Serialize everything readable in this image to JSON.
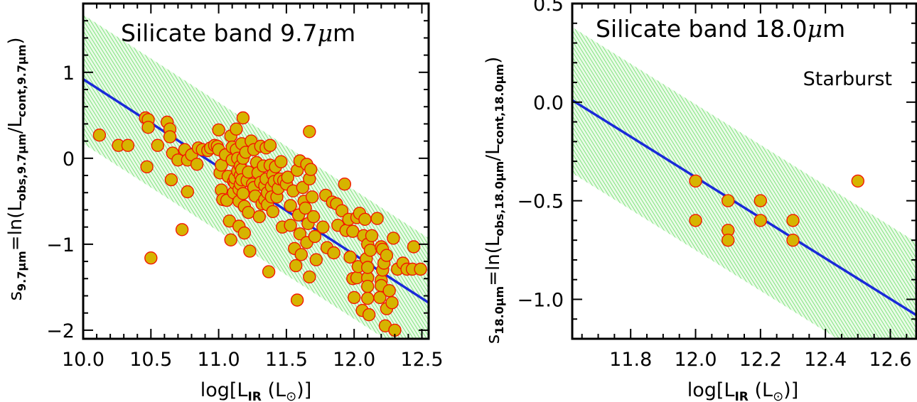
{
  "chart_data": [
    {
      "type": "scatter",
      "title": "Silicate band 9.7μm",
      "title_parts": {
        "prefix": "Silicate band 9.7",
        "mu": "μ",
        "unit": "m"
      },
      "annotation": "",
      "xlabel": "log[L_IR (L_⊙)]",
      "xlabel_parts": {
        "pre": "log[L",
        "sub": "IR",
        "mid": " (L",
        "sun": "⊙",
        "post": ")]"
      },
      "ylabel": "s_9.7μm=ln(L_obs,9.7μm/L_cont,9.7μm)",
      "ylabel_parts": {
        "s": "s",
        "s_sub": "9.7μm",
        "eq": "=ln(L",
        "num_sub": "obs,9.7μm",
        "slash": "/L",
        "den_sub": "cont,9.7μm",
        "close": ")"
      },
      "xlim": [
        10.0,
        12.55
      ],
      "ylim": [
        -2.1,
        1.8
      ],
      "xticks": [
        10.0,
        10.5,
        11.0,
        11.5,
        12.0,
        12.5
      ],
      "xtick_labels": [
        "10.0",
        "10.5",
        "11.0",
        "11.5",
        "12.0",
        "12.5"
      ],
      "yticks": [
        -2,
        -1,
        0,
        1
      ],
      "ytick_labels": [
        "−2",
        "−1",
        "0",
        "1"
      ],
      "fit_line": {
        "x": [
          10.0,
          12.55
        ],
        "y": [
          0.92,
          -1.68
        ]
      },
      "band": {
        "x": [
          10.0,
          12.55
        ],
        "upper": [
          1.67,
          -0.93
        ],
        "lower": [
          0.17,
          -2.43
        ]
      },
      "points": [
        [
          10.12,
          0.27
        ],
        [
          10.26,
          0.15
        ],
        [
          10.33,
          0.15
        ],
        [
          10.46,
          0.47
        ],
        [
          10.48,
          0.45
        ],
        [
          10.48,
          0.36
        ],
        [
          10.47,
          -0.1
        ],
        [
          10.5,
          -1.16
        ],
        [
          10.55,
          0.15
        ],
        [
          10.62,
          0.42
        ],
        [
          10.64,
          0.34
        ],
        [
          10.64,
          0.25
        ],
        [
          10.66,
          0.06
        ],
        [
          10.65,
          -0.25
        ],
        [
          10.7,
          -0.02
        ],
        [
          10.73,
          -0.83
        ],
        [
          10.75,
          0.1
        ],
        [
          10.77,
          -0.02
        ],
        [
          10.77,
          -0.39
        ],
        [
          10.8,
          0.04
        ],
        [
          10.84,
          -0.07
        ],
        [
          10.85,
          0.12
        ],
        [
          10.88,
          0.1
        ],
        [
          10.92,
          0.09
        ],
        [
          10.94,
          0.12
        ],
        [
          10.97,
          0.15
        ],
        [
          10.99,
          0.14
        ],
        [
          11.0,
          0.33
        ],
        [
          11.0,
          0.1
        ],
        [
          11.01,
          -0.17
        ],
        [
          11.02,
          -0.08
        ],
        [
          11.02,
          -0.37
        ],
        [
          11.03,
          -0.48
        ],
        [
          11.05,
          0.04
        ],
        [
          11.06,
          -0.49
        ],
        [
          11.07,
          -0.21
        ],
        [
          11.08,
          -0.73
        ],
        [
          11.09,
          -0.95
        ],
        [
          11.09,
          0.26
        ],
        [
          11.1,
          0.13
        ],
        [
          11.1,
          -0.02
        ],
        [
          11.11,
          -0.27
        ],
        [
          11.11,
          -0.4
        ],
        [
          11.12,
          -0.29
        ],
        [
          11.12,
          -0.23
        ],
        [
          11.13,
          0.34
        ],
        [
          11.13,
          0.1
        ],
        [
          11.14,
          0.0
        ],
        [
          11.14,
          -0.15
        ],
        [
          11.15,
          -0.36
        ],
        [
          11.15,
          -0.5
        ],
        [
          11.15,
          -0.79
        ],
        [
          11.16,
          -0.09
        ],
        [
          11.16,
          -0.2
        ],
        [
          11.16,
          -0.3
        ],
        [
          11.17,
          0.17
        ],
        [
          11.17,
          -0.13
        ],
        [
          11.17,
          -0.25
        ],
        [
          11.18,
          0.47
        ],
        [
          11.18,
          0.0
        ],
        [
          11.18,
          -0.41
        ],
        [
          11.19,
          -0.56
        ],
        [
          11.19,
          -0.87
        ],
        [
          11.2,
          0.07
        ],
        [
          11.21,
          -0.26
        ],
        [
          11.22,
          -0.16
        ],
        [
          11.22,
          -0.63
        ],
        [
          11.23,
          -1.08
        ],
        [
          11.24,
          0.2
        ],
        [
          11.25,
          -0.3
        ],
        [
          11.26,
          0.1
        ],
        [
          11.26,
          -0.34
        ],
        [
          11.27,
          -0.44
        ],
        [
          11.28,
          -0.05
        ],
        [
          11.29,
          -0.17
        ],
        [
          11.3,
          -0.68
        ],
        [
          11.31,
          0.14
        ],
        [
          11.31,
          -0.28
        ],
        [
          11.32,
          -0.53
        ],
        [
          11.33,
          -0.09
        ],
        [
          11.34,
          -0.32
        ],
        [
          11.34,
          -0.48
        ],
        [
          11.35,
          0.12
        ],
        [
          11.35,
          -0.24
        ],
        [
          11.36,
          -0.4
        ],
        [
          11.36,
          -0.54
        ],
        [
          11.37,
          -1.32
        ],
        [
          11.38,
          0.15
        ],
        [
          11.38,
          -0.08
        ],
        [
          11.39,
          -0.33
        ],
        [
          11.39,
          -0.45
        ],
        [
          11.4,
          -0.19
        ],
        [
          11.4,
          -0.62
        ],
        [
          11.41,
          -0.27
        ],
        [
          11.42,
          -0.1
        ],
        [
          11.43,
          -0.45
        ],
        [
          11.44,
          -0.35
        ],
        [
          11.45,
          -0.24
        ],
        [
          11.46,
          -0.04
        ],
        [
          11.47,
          -0.8
        ],
        [
          11.48,
          -0.26
        ],
        [
          11.5,
          -0.3
        ],
        [
          11.51,
          -0.22
        ],
        [
          11.53,
          -0.55
        ],
        [
          11.53,
          -0.78
        ],
        [
          11.55,
          -0.38
        ],
        [
          11.56,
          -1.05
        ],
        [
          11.57,
          -1.25
        ],
        [
          11.58,
          -0.14
        ],
        [
          11.58,
          -1.65
        ],
        [
          11.59,
          -0.66
        ],
        [
          11.6,
          -0.03
        ],
        [
          11.6,
          -0.88
        ],
        [
          11.61,
          -1.12
        ],
        [
          11.62,
          -0.34
        ],
        [
          11.63,
          -0.5
        ],
        [
          11.64,
          -0.58
        ],
        [
          11.65,
          -0.07
        ],
        [
          11.65,
          -0.98
        ],
        [
          11.66,
          -0.76
        ],
        [
          11.67,
          0.31
        ],
        [
          11.67,
          -0.24
        ],
        [
          11.67,
          -1.38
        ],
        [
          11.68,
          -0.13
        ],
        [
          11.69,
          -0.45
        ],
        [
          11.7,
          -0.68
        ],
        [
          11.71,
          -0.91
        ],
        [
          11.72,
          -1.18
        ],
        [
          11.77,
          -0.8
        ],
        [
          11.79,
          -0.43
        ],
        [
          11.8,
          -1.04
        ],
        [
          11.84,
          -0.51
        ],
        [
          11.85,
          -1.1
        ],
        [
          11.87,
          -0.53
        ],
        [
          11.88,
          -0.78
        ],
        [
          11.91,
          -0.61
        ],
        [
          11.93,
          -0.3
        ],
        [
          11.94,
          -0.84
        ],
        [
          11.96,
          -0.71
        ],
        [
          11.97,
          -1.15
        ],
        [
          11.99,
          -0.85
        ],
        [
          11.99,
          -1.4
        ],
        [
          12.0,
          -1.62
        ],
        [
          12.02,
          -0.69
        ],
        [
          12.02,
          -1.39
        ],
        [
          12.03,
          -1.26
        ],
        [
          12.04,
          -0.64
        ],
        [
          12.06,
          -1.77
        ],
        [
          12.07,
          -0.9
        ],
        [
          12.08,
          -0.71
        ],
        [
          12.09,
          -1.17
        ],
        [
          12.1,
          -1.39
        ],
        [
          12.1,
          -1.0
        ],
        [
          12.1,
          -1.27
        ],
        [
          12.1,
          -1.49
        ],
        [
          12.1,
          -1.63
        ],
        [
          12.11,
          -1.82
        ],
        [
          12.12,
          -1.07
        ],
        [
          12.13,
          -0.9
        ],
        [
          12.17,
          -0.7
        ],
        [
          12.19,
          -1.62
        ],
        [
          12.2,
          -1.03
        ],
        [
          12.2,
          -1.42
        ],
        [
          12.2,
          -1.48
        ],
        [
          12.21,
          -1.06
        ],
        [
          12.21,
          -1.3
        ],
        [
          12.22,
          -1.22
        ],
        [
          12.23,
          -1.95
        ],
        [
          12.24,
          -1.75
        ],
        [
          12.24,
          -1.13
        ],
        [
          12.26,
          -1.54
        ],
        [
          12.28,
          -1.68
        ],
        [
          12.29,
          -0.93
        ],
        [
          12.3,
          -2.0
        ],
        [
          12.32,
          -1.29
        ],
        [
          12.36,
          -1.22
        ],
        [
          12.39,
          -1.29
        ],
        [
          12.43,
          -1.29
        ],
        [
          12.44,
          -1.03
        ],
        [
          12.49,
          -1.29
        ]
      ]
    },
    {
      "type": "scatter",
      "title": "Silicate band 18.0μm",
      "title_parts": {
        "prefix": "Silicate band 18.0",
        "mu": "μ",
        "unit": "m"
      },
      "annotation": "Starburst",
      "xlabel": "log[L_IR (L_⊙)]",
      "xlabel_parts": {
        "pre": "log[L",
        "sub": "IR",
        "mid": " (L",
        "sun": "⊙",
        "post": ")]"
      },
      "ylabel": "s_18.0μm=ln(L_obs,18.0μm/L_cont,18.0μm)",
      "ylabel_parts": {
        "s": "s",
        "s_sub": "18.0μm",
        "eq": "=ln(L",
        "num_sub": "obs,18.0μm",
        "slash": "/L",
        "den_sub": "cont,18.0μm",
        "close": ")"
      },
      "xlim": [
        11.62,
        12.68
      ],
      "ylim": [
        -1.2,
        0.5
      ],
      "xticks": [
        11.8,
        12.0,
        12.2,
        12.4,
        12.6
      ],
      "xtick_labels": [
        "11.8",
        "12.0",
        "12.2",
        "12.4",
        "12.6"
      ],
      "yticks": [
        -1.0,
        -0.5,
        0.0,
        0.5
      ],
      "ytick_labels": [
        "−1.0",
        "−0.5",
        "0.0",
        "0.5"
      ],
      "fit_line": {
        "x": [
          11.62,
          12.68
        ],
        "y": [
          0.01,
          -1.08
        ]
      },
      "band": {
        "x": [
          11.62,
          12.68
        ],
        "upper": [
          0.38,
          -0.71
        ],
        "lower": [
          -0.36,
          -1.45
        ]
      },
      "points": [
        [
          12.0,
          -0.4
        ],
        [
          12.0,
          -0.6
        ],
        [
          12.1,
          -0.5
        ],
        [
          12.1,
          -0.65
        ],
        [
          12.1,
          -0.7
        ],
        [
          12.2,
          -0.5
        ],
        [
          12.2,
          -0.6
        ],
        [
          12.3,
          -0.6
        ],
        [
          12.3,
          -0.7
        ],
        [
          12.5,
          -0.4
        ]
      ]
    }
  ],
  "colors": {
    "band_fill": "#e9fbe6",
    "band_hatch": "#4ed84e",
    "fit_line": "#1a2ad8",
    "point_fill": "#d6b400",
    "point_edge": "#f21800",
    "axes": "#000000"
  }
}
